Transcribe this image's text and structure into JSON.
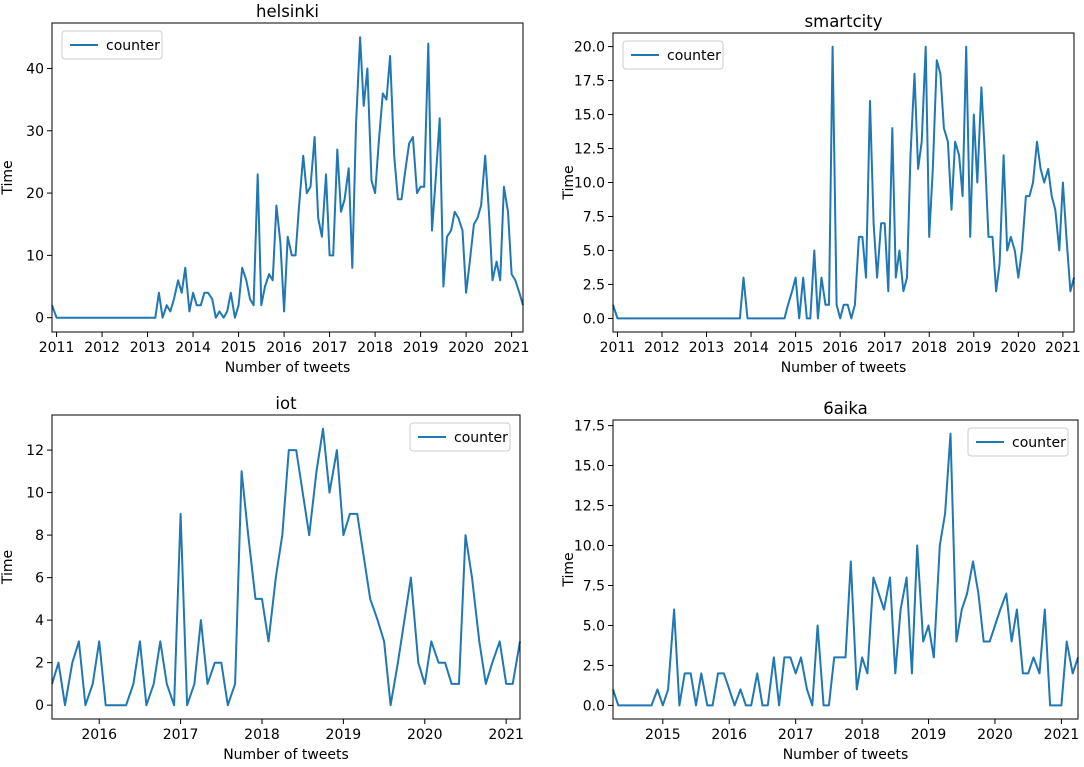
{
  "figure": {
    "title": ""
  },
  "chart_data": [
    {
      "type": "line",
      "title": "helsinki",
      "xlabel": "Number of tweets",
      "ylabel": "Time",
      "legend": "top-left",
      "series_name": "counter",
      "color": "#1f77b4",
      "xlim": [
        2010.9,
        2021.25
      ],
      "ylim": [
        -2.3,
        47.3
      ],
      "xticks": [
        2011,
        2012,
        2013,
        2014,
        2015,
        2016,
        2017,
        2018,
        2019,
        2020,
        2021
      ],
      "yticks": [
        0,
        10,
        20,
        30,
        40
      ],
      "ytick_labels": [
        "0",
        "10",
        "20",
        "30",
        "40"
      ],
      "x": [
        2010.9,
        2011.0,
        2011.25,
        2011.5,
        2011.75,
        2012.0,
        2012.25,
        2012.5,
        2012.75,
        2013.0,
        2013.17,
        2013.25,
        2013.33,
        2013.42,
        2013.5,
        2013.58,
        2013.67,
        2013.75,
        2013.83,
        2013.92,
        2014.0,
        2014.08,
        2014.17,
        2014.25,
        2014.33,
        2014.42,
        2014.5,
        2014.58,
        2014.67,
        2014.75,
        2014.83,
        2014.92,
        2015.0,
        2015.08,
        2015.17,
        2015.25,
        2015.33,
        2015.42,
        2015.5,
        2015.58,
        2015.67,
        2015.75,
        2015.83,
        2015.92,
        2016.0,
        2016.08,
        2016.17,
        2016.25,
        2016.33,
        2016.42,
        2016.5,
        2016.58,
        2016.67,
        2016.75,
        2016.83,
        2016.92,
        2017.0,
        2017.08,
        2017.17,
        2017.25,
        2017.33,
        2017.42,
        2017.5,
        2017.58,
        2017.67,
        2017.75,
        2017.83,
        2017.92,
        2018.0,
        2018.08,
        2018.17,
        2018.25,
        2018.33,
        2018.42,
        2018.5,
        2018.58,
        2018.67,
        2018.75,
        2018.83,
        2018.92,
        2019.0,
        2019.08,
        2019.17,
        2019.25,
        2019.33,
        2019.42,
        2019.5,
        2019.58,
        2019.67,
        2019.75,
        2019.83,
        2019.92,
        2020.0,
        2020.08,
        2020.17,
        2020.25,
        2020.33,
        2020.42,
        2020.5,
        2020.58,
        2020.67,
        2020.75,
        2020.83,
        2020.92,
        2021.0,
        2021.08,
        2021.17,
        2021.25
      ],
      "values": [
        2,
        0,
        0,
        0,
        0,
        0,
        0,
        0,
        0,
        0,
        0,
        4,
        0,
        2,
        1,
        3,
        6,
        4,
        8,
        1,
        4,
        2,
        2,
        4,
        4,
        3,
        0,
        1,
        0,
        1,
        4,
        0,
        2,
        8,
        6,
        3,
        2,
        23,
        2,
        5,
        7,
        6,
        18,
        12,
        1,
        13,
        10,
        10,
        18,
        26,
        20,
        21,
        29,
        16,
        13,
        23,
        10,
        10,
        27,
        17,
        19,
        24,
        8,
        31,
        45,
        34,
        40,
        22,
        20,
        28,
        36,
        35,
        42,
        26,
        19,
        19,
        24,
        28,
        29,
        20,
        21,
        21,
        44,
        14,
        22,
        32,
        5,
        13,
        14,
        17,
        16,
        14,
        4,
        9,
        15,
        16,
        18,
        26,
        17,
        6,
        9,
        6,
        21,
        17,
        7,
        6,
        4,
        2
      ]
    },
    {
      "type": "line",
      "title": "smartcity",
      "xlabel": "Number of tweets",
      "ylabel": "Time",
      "legend": "top-left",
      "series_name": "counter",
      "color": "#1f77b4",
      "xlim": [
        2010.9,
        2021.25
      ],
      "ylim": [
        -1.0,
        21.0
      ],
      "xticks": [
        2011,
        2012,
        2013,
        2014,
        2015,
        2016,
        2017,
        2018,
        2019,
        2020,
        2021
      ],
      "yticks": [
        0,
        2.5,
        5,
        7.5,
        10,
        12.5,
        15,
        17.5,
        20
      ],
      "ytick_labels": [
        "0.0",
        "2.5",
        "5.0",
        "7.5",
        "10.0",
        "12.5",
        "15.0",
        "17.5",
        "20.0"
      ],
      "x": [
        2010.9,
        2011.0,
        2011.5,
        2012.0,
        2012.5,
        2013.0,
        2013.5,
        2013.75,
        2013.83,
        2013.92,
        2014.0,
        2014.5,
        2014.75,
        2014.83,
        2014.92,
        2015.0,
        2015.08,
        2015.17,
        2015.25,
        2015.33,
        2015.42,
        2015.5,
        2015.58,
        2015.67,
        2015.75,
        2015.83,
        2015.92,
        2016.0,
        2016.08,
        2016.17,
        2016.25,
        2016.33,
        2016.42,
        2016.5,
        2016.58,
        2016.67,
        2016.75,
        2016.83,
        2016.92,
        2017.0,
        2017.08,
        2017.17,
        2017.25,
        2017.33,
        2017.42,
        2017.5,
        2017.58,
        2017.67,
        2017.75,
        2017.83,
        2017.92,
        2018.0,
        2018.08,
        2018.17,
        2018.25,
        2018.33,
        2018.42,
        2018.5,
        2018.58,
        2018.67,
        2018.75,
        2018.83,
        2018.92,
        2019.0,
        2019.08,
        2019.17,
        2019.25,
        2019.33,
        2019.42,
        2019.5,
        2019.58,
        2019.67,
        2019.75,
        2019.83,
        2019.92,
        2020.0,
        2020.08,
        2020.17,
        2020.25,
        2020.33,
        2020.42,
        2020.5,
        2020.58,
        2020.67,
        2020.75,
        2020.83,
        2020.92,
        2021.0,
        2021.08,
        2021.17,
        2021.25
      ],
      "values": [
        1,
        0,
        0,
        0,
        0,
        0,
        0,
        0,
        3,
        0,
        0,
        0,
        0,
        1,
        2,
        3,
        0,
        3,
        0,
        0,
        5,
        0,
        3,
        1,
        1,
        20,
        1,
        0,
        1,
        1,
        0,
        1,
        6,
        6,
        3,
        16,
        7,
        3,
        7,
        7,
        2,
        14,
        3,
        5,
        2,
        3,
        12,
        18,
        11,
        13,
        20,
        6,
        11,
        19,
        18,
        14,
        13,
        8,
        13,
        12,
        9,
        20,
        6,
        15,
        10,
        17,
        12,
        6,
        6,
        2,
        4,
        12,
        5,
        6,
        5,
        3,
        5,
        9,
        9,
        10,
        13,
        11,
        10,
        11,
        9,
        8,
        5,
        10,
        6,
        2,
        3
      ]
    },
    {
      "type": "line",
      "title": "iot",
      "xlabel": "Number of tweets",
      "ylabel": "Time",
      "legend": "top-right",
      "series_name": "counter",
      "color": "#1f77b4",
      "xlim": [
        2015.42,
        2021.17
      ],
      "ylim": [
        -0.65,
        13.65
      ],
      "xticks": [
        2016,
        2017,
        2018,
        2019,
        2020,
        2021
      ],
      "yticks": [
        0,
        2,
        4,
        6,
        8,
        10,
        12
      ],
      "ytick_labels": [
        "0",
        "2",
        "4",
        "6",
        "8",
        "10",
        "12"
      ],
      "x": [
        2015.42,
        2015.5,
        2015.58,
        2015.67,
        2015.75,
        2015.83,
        2015.92,
        2016.0,
        2016.08,
        2016.17,
        2016.25,
        2016.33,
        2016.42,
        2016.5,
        2016.58,
        2016.67,
        2016.75,
        2016.83,
        2016.92,
        2017.0,
        2017.08,
        2017.17,
        2017.25,
        2017.33,
        2017.42,
        2017.5,
        2017.58,
        2017.67,
        2017.75,
        2017.83,
        2017.92,
        2018.0,
        2018.08,
        2018.17,
        2018.25,
        2018.33,
        2018.42,
        2018.5,
        2018.58,
        2018.67,
        2018.75,
        2018.83,
        2018.92,
        2019.0,
        2019.08,
        2019.17,
        2019.25,
        2019.33,
        2019.42,
        2019.5,
        2019.58,
        2019.67,
        2019.75,
        2019.83,
        2019.92,
        2020.0,
        2020.08,
        2020.17,
        2020.25,
        2020.33,
        2020.42,
        2020.5,
        2020.58,
        2020.67,
        2020.75,
        2020.83,
        2020.92,
        2021.0,
        2021.08,
        2021.17
      ],
      "values": [
        1,
        2,
        0,
        2,
        3,
        0,
        1,
        3,
        0,
        0,
        0,
        0,
        1,
        3,
        0,
        1,
        3,
        1,
        0,
        9,
        0,
        1,
        4,
        1,
        2,
        2,
        0,
        1,
        11,
        8,
        5,
        5,
        3,
        6,
        8,
        12,
        12,
        10,
        8,
        11,
        13,
        10,
        12,
        8,
        9,
        9,
        7,
        5,
        4,
        3,
        0,
        2,
        4,
        6,
        2,
        1,
        3,
        2,
        2,
        1,
        1,
        8,
        6,
        3,
        1,
        2,
        3,
        1,
        1,
        3
      ]
    },
    {
      "type": "line",
      "title": "6aika",
      "xlabel": "Number of tweets",
      "ylabel": "Time",
      "legend": "top-right",
      "series_name": "counter",
      "color": "#1f77b4",
      "xlim": [
        2014.25,
        2021.25
      ],
      "ylim": [
        -0.85,
        17.85
      ],
      "xticks": [
        2015,
        2016,
        2017,
        2018,
        2019,
        2020,
        2021
      ],
      "yticks": [
        0,
        2.5,
        5,
        7.5,
        10,
        12.5,
        15,
        17.5
      ],
      "ytick_labels": [
        "0.0",
        "2.5",
        "5.0",
        "7.5",
        "10.0",
        "12.5",
        "15.0",
        "17.5"
      ],
      "x": [
        2014.25,
        2014.33,
        2014.42,
        2014.5,
        2014.58,
        2014.67,
        2014.75,
        2014.83,
        2014.92,
        2015.0,
        2015.08,
        2015.17,
        2015.25,
        2015.33,
        2015.42,
        2015.5,
        2015.58,
        2015.67,
        2015.75,
        2015.83,
        2015.92,
        2016.0,
        2016.08,
        2016.17,
        2016.25,
        2016.33,
        2016.42,
        2016.5,
        2016.58,
        2016.67,
        2016.75,
        2016.83,
        2016.92,
        2017.0,
        2017.08,
        2017.17,
        2017.25,
        2017.33,
        2017.42,
        2017.5,
        2017.58,
        2017.67,
        2017.75,
        2017.83,
        2017.92,
        2018.0,
        2018.08,
        2018.17,
        2018.25,
        2018.33,
        2018.42,
        2018.5,
        2018.58,
        2018.67,
        2018.75,
        2018.83,
        2018.92,
        2019.0,
        2019.08,
        2019.17,
        2019.25,
        2019.33,
        2019.42,
        2019.5,
        2019.58,
        2019.67,
        2019.75,
        2019.83,
        2019.92,
        2020.0,
        2020.08,
        2020.17,
        2020.25,
        2020.33,
        2020.42,
        2020.5,
        2020.58,
        2020.67,
        2020.75,
        2020.83,
        2020.92,
        2021.0,
        2021.08,
        2021.17,
        2021.25
      ],
      "values": [
        1,
        0,
        0,
        0,
        0,
        0,
        0,
        0,
        1,
        0,
        1,
        6,
        0,
        2,
        2,
        0,
        2,
        0,
        0,
        2,
        2,
        1,
        0,
        1,
        0,
        0,
        2,
        0,
        0,
        3,
        0,
        3,
        3,
        2,
        3,
        1,
        0,
        5,
        0,
        0,
        3,
        3,
        3,
        9,
        1,
        3,
        2,
        8,
        7,
        6,
        8,
        2,
        6,
        8,
        2,
        10,
        4,
        5,
        3,
        10,
        12,
        17,
        4,
        6,
        7,
        9,
        7,
        4,
        4,
        5,
        6,
        7,
        4,
        6,
        2,
        2,
        3,
        2,
        6,
        0,
        0,
        0,
        4,
        2,
        3
      ]
    }
  ]
}
